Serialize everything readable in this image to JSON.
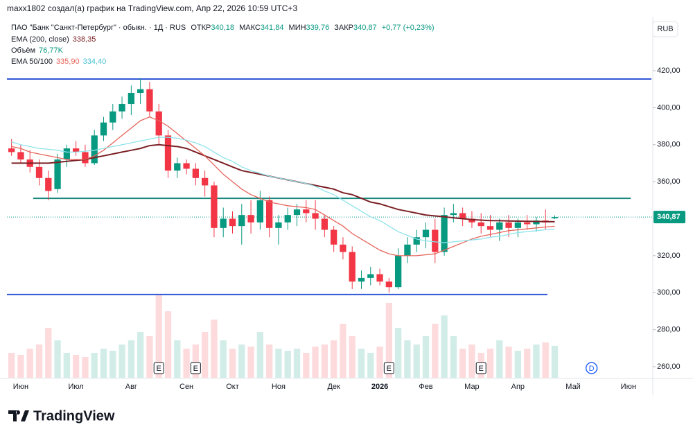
{
  "header": {
    "author_line": "maxx1802 создал(а) график на TradingView.com, Апр 22, 2026 10:59 UTC+3",
    "currency_button": "RUB",
    "logo": "TradingView"
  },
  "legend": {
    "symbol": "ПАО \"Банк \"Санкт-Петербург\" · обыкн. · 1Д · RUS",
    "open_label": "ОТКР",
    "open": "340,18",
    "high_label": "МАКС",
    "high": "341,84",
    "low_label": "МИН",
    "low": "339,76",
    "close_label": "ЗАКР",
    "close": "340,87",
    "change": "+0,77 (+0,23%)",
    "ema200_label": "EMA (200, close)",
    "ema200": "338,35",
    "volume_label": "Объём",
    "volume": "76,77K",
    "ema50_100_label": "EMA 50/100",
    "ema50": "335,90",
    "ema100": "334,40"
  },
  "chart_data": {
    "type": "candlestick",
    "categories": [
      null,
      "Июн",
      null,
      null,
      null,
      null,
      null,
      "Июл",
      null,
      null,
      null,
      null,
      null,
      "Авг",
      null,
      null,
      null,
      null,
      null,
      "Сен",
      null,
      null,
      null,
      null,
      "Окт",
      null,
      null,
      null,
      null,
      "Ноя",
      null,
      null,
      null,
      null,
      null,
      "Дек",
      null,
      null,
      null,
      null,
      "2026",
      null,
      null,
      null,
      null,
      "Фев",
      null,
      null,
      null,
      null,
      "Мар",
      null,
      null,
      null,
      null,
      "Апр",
      null,
      null,
      null,
      null,
      null,
      "Май",
      null,
      null,
      null,
      null,
      null,
      "Июн",
      null,
      null
    ],
    "open": [
      378,
      376,
      372,
      368,
      362,
      356,
      372,
      378,
      376,
      370,
      385,
      392,
      398,
      402,
      408,
      410,
      398,
      385,
      366,
      370,
      367,
      362,
      358,
      335,
      340,
      336,
      342,
      338,
      350,
      335,
      338,
      342,
      345,
      343,
      340,
      334,
      326,
      322,
      306,
      308,
      310,
      306,
      303,
      320,
      326,
      330,
      334,
      322,
      342,
      343,
      340,
      338,
      336,
      334,
      338,
      335,
      338,
      337,
      339,
      340.18,
      null,
      null,
      null,
      null,
      null,
      null,
      null,
      null,
      null,
      null
    ],
    "high": [
      383,
      380,
      377,
      372,
      366,
      375,
      380,
      382,
      380,
      388,
      395,
      402,
      406,
      412,
      416,
      414,
      402,
      388,
      373,
      372,
      370,
      366,
      360,
      346,
      344,
      348,
      350,
      355,
      352,
      342,
      346,
      348,
      350,
      350,
      342,
      336,
      330,
      325,
      312,
      314,
      313,
      308,
      324,
      330,
      334,
      338,
      340,
      346,
      348,
      346,
      344,
      343,
      342,
      340,
      342,
      340,
      342,
      341,
      345,
      341.84,
      null,
      null,
      null,
      null,
      null,
      null,
      null,
      null,
      null,
      null
    ],
    "low": [
      374,
      370,
      365,
      358,
      350,
      354,
      368,
      374,
      368,
      369,
      382,
      388,
      394,
      396,
      402,
      395,
      380,
      362,
      362,
      364,
      358,
      352,
      330,
      330,
      332,
      326,
      332,
      334,
      330,
      326,
      334,
      336,
      338,
      334,
      330,
      322,
      318,
      302,
      302,
      304,
      304,
      300,
      302,
      316,
      322,
      324,
      316,
      320,
      338,
      336,
      335,
      332,
      330,
      328,
      330,
      330,
      334,
      333,
      334,
      339.76,
      null,
      null,
      null,
      null,
      null,
      null,
      null,
      null,
      null,
      null
    ],
    "close": [
      376,
      372,
      368,
      362,
      355,
      372,
      378,
      376,
      370,
      385,
      392,
      398,
      402,
      408,
      410,
      398,
      385,
      366,
      370,
      367,
      362,
      358,
      335,
      340,
      336,
      342,
      338,
      350,
      335,
      338,
      342,
      345,
      343,
      340,
      334,
      326,
      322,
      306,
      308,
      310,
      306,
      303,
      320,
      326,
      330,
      334,
      322,
      342,
      343,
      340,
      338,
      336,
      334,
      338,
      335,
      338,
      337,
      339,
      338,
      340.87,
      null,
      null,
      null,
      null,
      null,
      null,
      null,
      null,
      null,
      null
    ],
    "volume": [
      60,
      55,
      70,
      80,
      120,
      90,
      60,
      55,
      50,
      60,
      70,
      65,
      80,
      90,
      110,
      100,
      200,
      160,
      90,
      70,
      80,
      110,
      140,
      90,
      70,
      80,
      75,
      110,
      80,
      70,
      65,
      70,
      60,
      75,
      80,
      90,
      130,
      100,
      70,
      60,
      75,
      180,
      120,
      90,
      80,
      100,
      130,
      150,
      100,
      70,
      80,
      60,
      70,
      90,
      75,
      65,
      70,
      80,
      85,
      76.77,
      null,
      null,
      null,
      null,
      null,
      null,
      null,
      null,
      null,
      null
    ],
    "up_color": "#089981",
    "down_color": "#f23645",
    "series": [
      {
        "name": "EMA 200",
        "color": "#7b1f24",
        "values": [
          370,
          370,
          370,
          370,
          370,
          370.5,
          371,
          371.5,
          372,
          373,
          374,
          375,
          376,
          377,
          378,
          379.5,
          380,
          379.5,
          379,
          378,
          376,
          374,
          372,
          370,
          368,
          366,
          365,
          364,
          363,
          362,
          361,
          360,
          359,
          358,
          357,
          356,
          354,
          353,
          351,
          349,
          348,
          346.5,
          345,
          344,
          343,
          342,
          341.5,
          341,
          340.5,
          340,
          339.5,
          339.2,
          339,
          338.9,
          338.8,
          338.7,
          338.6,
          338.5,
          338.4,
          338.35,
          null,
          null,
          null,
          null,
          null,
          null,
          null,
          null,
          null,
          null
        ]
      },
      {
        "name": "EMA 50",
        "color": "#e5645a",
        "values": [
          379,
          378,
          376,
          375,
          374,
          373,
          372,
          372,
          372,
          374,
          377,
          381,
          385,
          389,
          393,
          395,
          393,
          390,
          386,
          382,
          378,
          374,
          369,
          364,
          360,
          356,
          353,
          351,
          349,
          348,
          347,
          346.5,
          346,
          345,
          342,
          339,
          336,
          332,
          329,
          326,
          323,
          321,
          320,
          320,
          320,
          320.5,
          321,
          323,
          325,
          327,
          329,
          330.5,
          331.5,
          332.5,
          333.5,
          334,
          334.5,
          335,
          335.5,
          335.9,
          null,
          null,
          null,
          null,
          null,
          null,
          null,
          null,
          null,
          null
        ]
      },
      {
        "name": "EMA 100",
        "color": "#8ee3ec",
        "values": [
          381.5,
          380,
          379,
          378,
          377.5,
          377,
          376,
          376,
          376.5,
          377,
          378,
          379,
          380,
          381,
          382,
          383,
          384,
          384,
          383.5,
          382.5,
          381,
          379,
          376,
          373,
          371,
          368,
          366,
          364.5,
          363,
          362,
          361,
          360,
          359,
          357.5,
          355,
          353,
          350,
          347,
          344,
          341,
          339,
          336,
          333,
          331,
          329,
          328,
          327.5,
          327,
          327.5,
          328,
          328.5,
          329,
          330,
          330.5,
          331.5,
          332.5,
          333,
          333.5,
          334,
          334.4,
          null,
          null,
          null,
          null,
          null,
          null,
          null,
          null,
          null,
          null
        ]
      }
    ],
    "levels": [
      {
        "value": 415.5,
        "color": "#2f57d6"
      },
      {
        "value": 351,
        "color": "#16867a"
      },
      {
        "value": 299,
        "color": "#2f57d6"
      }
    ],
    "last_price": {
      "value": 340.87,
      "label": "340,87"
    },
    "events": [
      null,
      null,
      null,
      null,
      null,
      null,
      null,
      null,
      null,
      null,
      null,
      null,
      null,
      null,
      null,
      null,
      "E",
      null,
      null,
      null,
      "E",
      null,
      null,
      null,
      null,
      null,
      null,
      null,
      null,
      null,
      null,
      null,
      null,
      null,
      null,
      null,
      null,
      null,
      null,
      null,
      null,
      "E",
      null,
      null,
      null,
      null,
      null,
      null,
      null,
      null,
      null,
      "E",
      null,
      null,
      null,
      null,
      null,
      null,
      null,
      null,
      null,
      null,
      null,
      "D",
      null,
      null,
      null,
      null,
      null,
      null
    ],
    "ylim": [
      250,
      440
    ],
    "yticks": [
      {
        "value": 260,
        "label": "260,00"
      },
      {
        "value": 280,
        "label": "280,00"
      },
      {
        "value": 300,
        "label": "300,00"
      },
      {
        "value": 320,
        "label": "320,00"
      },
      {
        "value": 340,
        "label": "340,00"
      },
      {
        "value": 360,
        "label": "360,00"
      },
      {
        "value": 380,
        "label": "380,00"
      },
      {
        "value": 400,
        "label": "400,00"
      },
      {
        "value": 420,
        "label": "420,00"
      }
    ]
  }
}
